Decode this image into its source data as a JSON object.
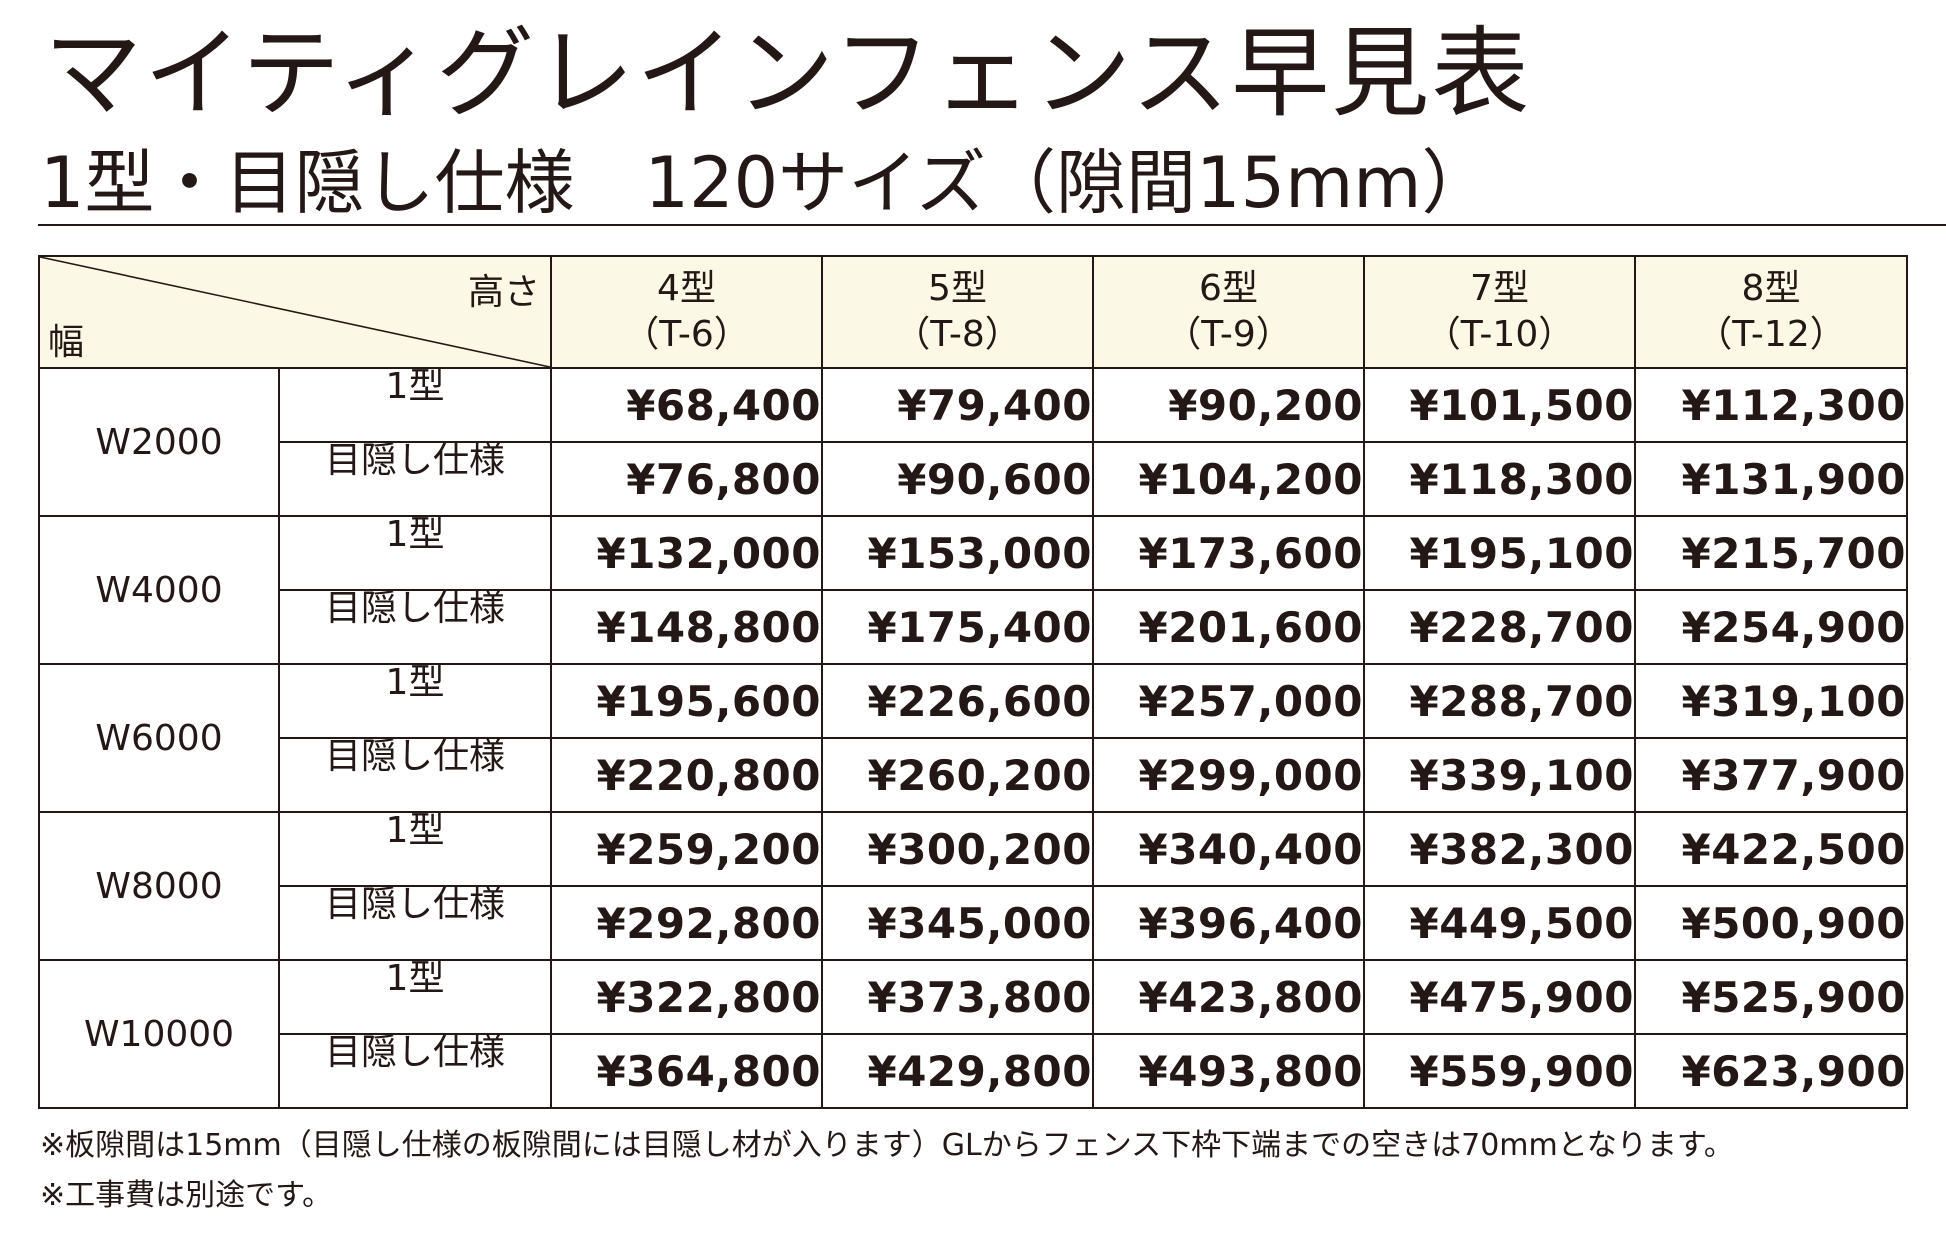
{
  "title": "マイティグレインフェンス早見表",
  "subtitle": "1型・目隠し仕様　120サイズ（隙間15mm）",
  "table": {
    "corner_height_label": "高さ",
    "corner_width_label": "幅",
    "columns": [
      {
        "type": "4型",
        "code": "（T-6）"
      },
      {
        "type": "5型",
        "code": "（T-8）"
      },
      {
        "type": "6型",
        "code": "（T-9）"
      },
      {
        "type": "7型",
        "code": "（T-10）"
      },
      {
        "type": "8型",
        "code": "（T-12）"
      }
    ],
    "rows": [
      {
        "width": "W2000",
        "variants": [
          {
            "name": "1型",
            "prices": [
              "¥68,400",
              "¥79,400",
              "¥90,200",
              "¥101,500",
              "¥112,300"
            ]
          },
          {
            "name": "目隠し仕様",
            "prices": [
              "¥76,800",
              "¥90,600",
              "¥104,200",
              "¥118,300",
              "¥131,900"
            ]
          }
        ]
      },
      {
        "width": "W4000",
        "variants": [
          {
            "name": "1型",
            "prices": [
              "¥132,000",
              "¥153,000",
              "¥173,600",
              "¥195,100",
              "¥215,700"
            ]
          },
          {
            "name": "目隠し仕様",
            "prices": [
              "¥148,800",
              "¥175,400",
              "¥201,600",
              "¥228,700",
              "¥254,900"
            ]
          }
        ]
      },
      {
        "width": "W6000",
        "variants": [
          {
            "name": "1型",
            "prices": [
              "¥195,600",
              "¥226,600",
              "¥257,000",
              "¥288,700",
              "¥319,100"
            ]
          },
          {
            "name": "目隠し仕様",
            "prices": [
              "¥220,800",
              "¥260,200",
              "¥299,000",
              "¥339,100",
              "¥377,900"
            ]
          }
        ]
      },
      {
        "width": "W8000",
        "variants": [
          {
            "name": "1型",
            "prices": [
              "¥259,200",
              "¥300,200",
              "¥340,400",
              "¥382,300",
              "¥422,500"
            ]
          },
          {
            "name": "目隠し仕様",
            "prices": [
              "¥292,800",
              "¥345,000",
              "¥396,400",
              "¥449,500",
              "¥500,900"
            ]
          }
        ]
      },
      {
        "width": "W10000",
        "variants": [
          {
            "name": "1型",
            "prices": [
              "¥322,800",
              "¥373,800",
              "¥423,800",
              "¥475,900",
              "¥525,900"
            ]
          },
          {
            "name": "目隠し仕様",
            "prices": [
              "¥364,800",
              "¥429,800",
              "¥493,800",
              "¥559,900",
              "¥623,900"
            ]
          }
        ]
      }
    ]
  },
  "notes": [
    "※板隙間は15mm（目隠し仕様の板隙間には目隠し材が入ります）GLからフェンス下枠下端までの空きは70mmとなります。",
    "※工事費は別途です。"
  ],
  "colors": {
    "header_bg": "#fbf8e6",
    "text": "#231815"
  }
}
